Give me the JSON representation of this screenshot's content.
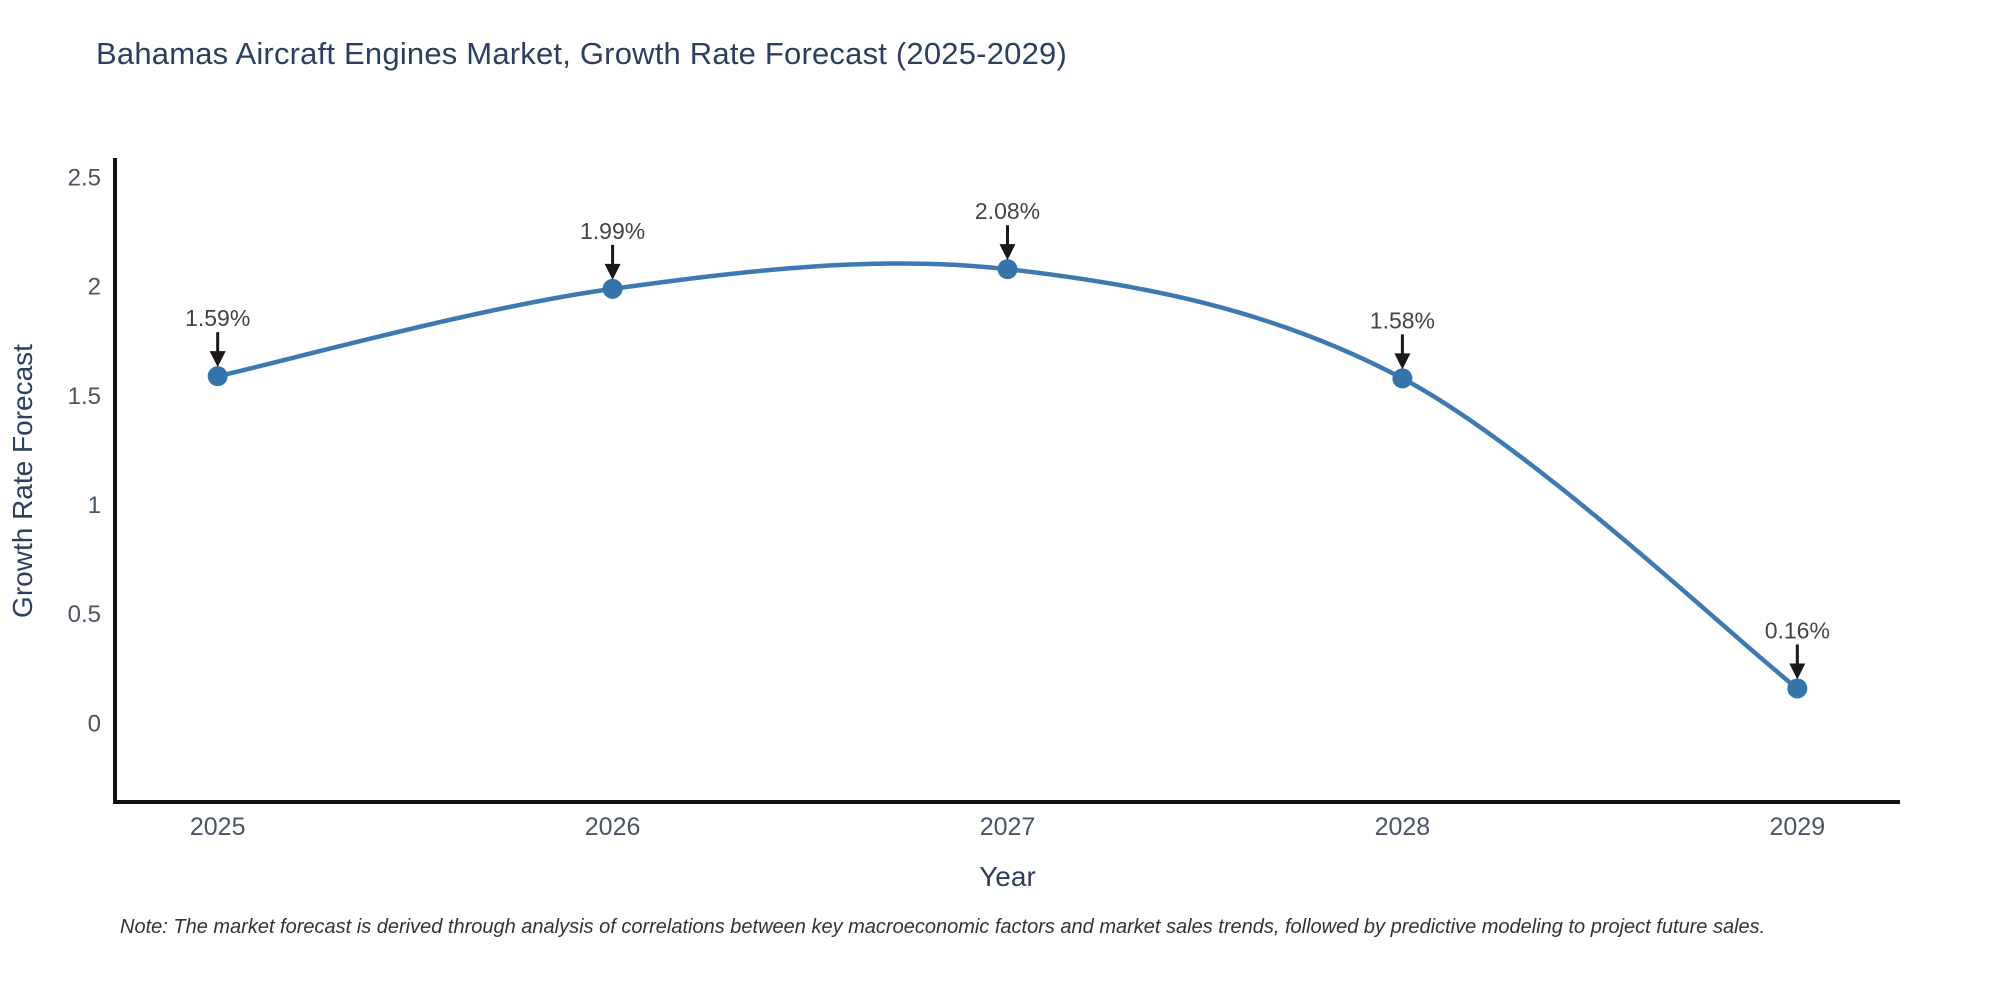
{
  "header": {
    "title": "Bahamas Aircraft Engines Market, Growth Rate Forecast (2025-2029)"
  },
  "footnote": {
    "text": "Note: The market forecast is derived through analysis of correlations between key macroeconomic factors and market sales trends, followed by predictive modeling to project future sales."
  },
  "chart_data": {
    "type": "line",
    "line_shape": "spline",
    "title": "Bahamas Aircraft Engines Market, Growth Rate Forecast (2025-2029)",
    "xlabel": "Year",
    "ylabel": "Growth Rate Forecast",
    "x": [
      2025,
      2026,
      2027,
      2028,
      2029
    ],
    "series": [
      {
        "name": "Growth Rate Forecast",
        "values": [
          1.59,
          1.99,
          2.08,
          1.58,
          0.16
        ]
      }
    ],
    "point_labels": [
      "1.59%",
      "1.99%",
      "2.08%",
      "1.58%",
      "0.16%"
    ],
    "xtick_labels": [
      "2025",
      "2026",
      "2027",
      "2028",
      "2029"
    ],
    "yticks": [
      0,
      0.5,
      1,
      1.5,
      2,
      2.5
    ],
    "ytick_labels": [
      "0",
      "0.5",
      "1",
      "1.5",
      "2",
      "2.5"
    ],
    "xlim": [
      2024.74,
      2029.26
    ],
    "ylim": [
      -0.36,
      2.58
    ],
    "grid": false,
    "legend_position": "none",
    "colors": {
      "line": "#3e79b2",
      "marker": "#3674ac",
      "axis": "#111111",
      "arrow": "#1a1a1a",
      "tick_text": "#4a5563",
      "axis_title_text": "#2d3f5f",
      "annotation_text": "#444444",
      "title_text": "#2d3f5f",
      "background": "#ffffff"
    }
  }
}
